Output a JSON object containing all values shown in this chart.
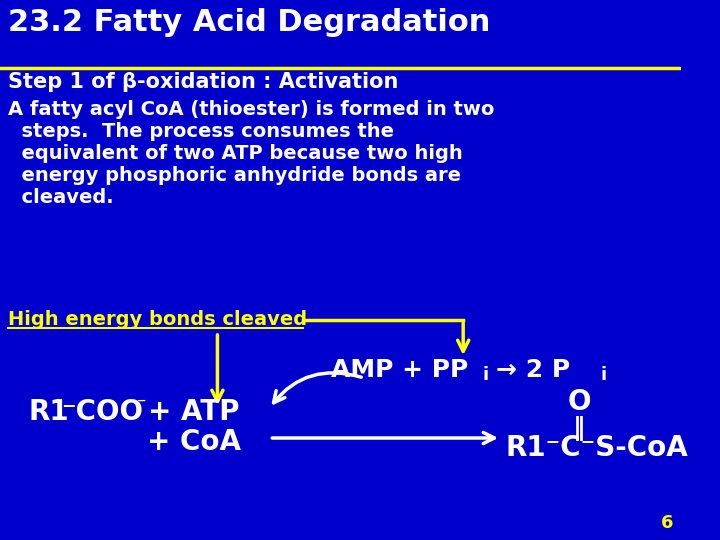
{
  "bg_color": "#0000CC",
  "title": "23.2 Fatty Acid Degradation",
  "title_color": "#FFFFFF",
  "title_fontsize": 22,
  "line_color": "#FFFF00",
  "subtitle": "Step 1 of β-oxidation : Activation",
  "subtitle_color": "#FFFFFF",
  "subtitle_fontsize": 15,
  "body_line1": "A fatty acyl CoA (thioester) is formed in two",
  "body_line2": "  steps.  The process consumes the",
  "body_line3": "  equivalent of two ATP because two high",
  "body_line4": "  energy phosphoric anhydride bonds are",
  "body_line5": "  cleaved.",
  "body_color": "#FFFFFF",
  "body_fontsize": 14,
  "highlight_text": "High energy bonds cleaved",
  "highlight_color": "#FFFF00",
  "highlight_fontsize": 14,
  "page_num": "6",
  "page_num_color": "#FFFF00",
  "white": "#FFFFFF",
  "yellow": "#FFFF00"
}
